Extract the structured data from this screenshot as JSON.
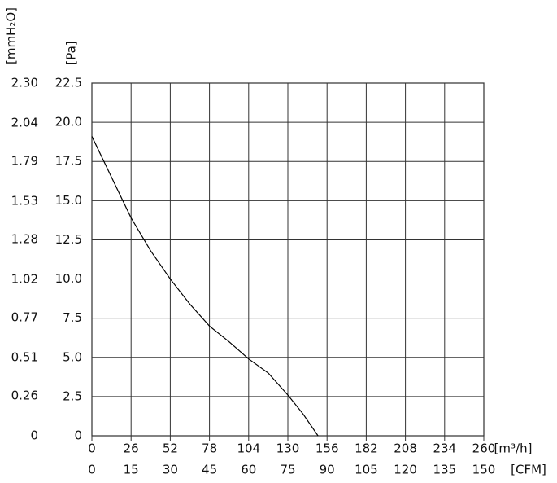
{
  "chart_data": {
    "type": "line",
    "x": [
      0,
      13,
      26,
      39,
      52,
      65,
      78,
      91,
      104,
      117,
      130,
      140,
      150
    ],
    "values": [
      19.1,
      16.5,
      13.9,
      11.8,
      10.0,
      8.4,
      7.0,
      6.0,
      4.9,
      4.0,
      2.6,
      1.4,
      0
    ],
    "color": "#000000",
    "xlabel": "[m³/h]",
    "x2label": "[CFM]",
    "ylabel": "[Pa]",
    "y2label": "[mmH₂O]",
    "xlim": [
      0,
      260
    ],
    "xticks": [
      0,
      26,
      52,
      78,
      104,
      130,
      156,
      182,
      208,
      234,
      260
    ],
    "x2lim": [
      0,
      150
    ],
    "x2ticks": [
      0,
      15,
      30,
      45,
      60,
      75,
      90,
      105,
      120,
      135,
      150
    ],
    "ylim": [
      0,
      22.5
    ],
    "yticks": [
      0,
      2.5,
      {
        "value": 5,
        "label": "5.0"
      },
      7.5,
      {
        "value": 10,
        "label": "10.0"
      },
      12.5,
      {
        "value": 15,
        "label": "15.0"
      },
      17.5,
      {
        "value": 20,
        "label": "20.0"
      },
      22.5
    ],
    "y2lim": [
      0,
      2.3
    ],
    "y2ticks": [
      0,
      0.26,
      0.51,
      0.77,
      1.02,
      1.28,
      1.53,
      1.79,
      2.04,
      {
        "value": 2.3,
        "label": "2.30"
      }
    ],
    "grid": true
  }
}
